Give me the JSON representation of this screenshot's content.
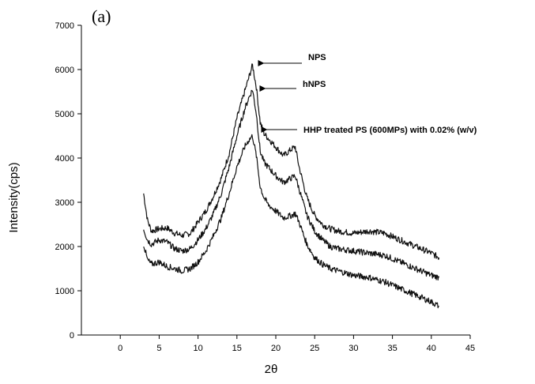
{
  "panel_label": "(a)",
  "chart_data": {
    "type": "line",
    "xlabel": "2θ",
    "ylabel": "Intensity(cps)",
    "xlim": [
      -5,
      45
    ],
    "ylim": [
      0,
      7000
    ],
    "x_ticks": [
      0,
      5,
      10,
      15,
      20,
      25,
      30,
      35,
      40,
      45
    ],
    "y_ticks": [
      0,
      1000,
      2000,
      3000,
      4000,
      5000,
      6000,
      7000
    ],
    "grid": false,
    "annotations": [
      {
        "text": "NPS",
        "series": 0
      },
      {
        "text": "hNPS",
        "series": 1
      },
      {
        "text": "HHP treated PS (600MPs) with 0.02% (w/v)",
        "series": 2
      }
    ],
    "series": [
      {
        "x": [
          3,
          3.5,
          4,
          5,
          6,
          7,
          8,
          9,
          10,
          11,
          12,
          13,
          14,
          15,
          16,
          16.5,
          17,
          17.5,
          18,
          18.5,
          19,
          20,
          21,
          22,
          22.5,
          23,
          24,
          25,
          26,
          27,
          28,
          30,
          32,
          34,
          36,
          38,
          40,
          41
        ],
        "y": [
          3200,
          2600,
          2350,
          2400,
          2420,
          2300,
          2250,
          2300,
          2550,
          2800,
          3150,
          3550,
          4100,
          4900,
          5500,
          5800,
          6100,
          5600,
          4800,
          4550,
          4450,
          4250,
          4050,
          4200,
          4250,
          3800,
          3100,
          2700,
          2500,
          2400,
          2350,
          2300,
          2350,
          2300,
          2150,
          2000,
          1850,
          1750
        ]
      },
      {
        "x": [
          3,
          3.5,
          4,
          5,
          6,
          7,
          8,
          9,
          10,
          11,
          12,
          13,
          14,
          15,
          16,
          16.5,
          17,
          17.5,
          18,
          18.5,
          19,
          20,
          21,
          22,
          22.5,
          23,
          24,
          25,
          26,
          27,
          28,
          30,
          32,
          34,
          36,
          38,
          40,
          41
        ],
        "y": [
          2400,
          2150,
          2050,
          2150,
          2100,
          1950,
          1900,
          1950,
          2150,
          2400,
          2750,
          3200,
          3800,
          4500,
          5100,
          5350,
          5550,
          5000,
          4150,
          3900,
          3800,
          3600,
          3450,
          3550,
          3600,
          3300,
          2700,
          2350,
          2150,
          2000,
          1950,
          1900,
          1850,
          1800,
          1650,
          1500,
          1350,
          1300
        ]
      },
      {
        "x": [
          3,
          3.5,
          4,
          5,
          6,
          7,
          8,
          9,
          10,
          11,
          12,
          13,
          14,
          15,
          16,
          16.5,
          17,
          17.5,
          18,
          18.5,
          19,
          20,
          21,
          22,
          22.5,
          23,
          24,
          25,
          26,
          27,
          28,
          30,
          32,
          34,
          36,
          38,
          40,
          41
        ],
        "y": [
          2050,
          1700,
          1600,
          1650,
          1550,
          1500,
          1450,
          1500,
          1650,
          1900,
          2250,
          2650,
          3200,
          3800,
          4250,
          4400,
          4500,
          4050,
          3350,
          3100,
          2950,
          2800,
          2650,
          2700,
          2750,
          2550,
          2050,
          1750,
          1600,
          1500,
          1450,
          1350,
          1300,
          1200,
          1050,
          900,
          750,
          650
        ]
      }
    ]
  }
}
